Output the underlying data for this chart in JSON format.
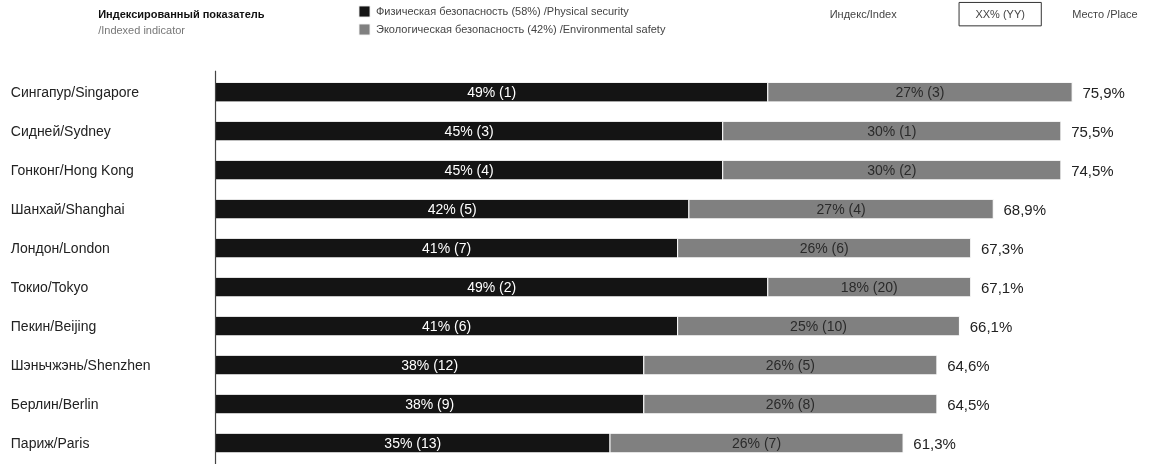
{
  "chart_data": {
    "type": "bar",
    "orientation": "horizontal",
    "stacked": true,
    "legend_title": "Индексированный показатель\n/Indexed indicator",
    "annotations": [
      "Индекс/Index",
      "XX% (YY)",
      "Место /Place",
      {
        "text": "75,9%",
        "x": 76,
        "y": "Сингапур/Singapore"
      },
      {
        "text": "75,5%",
        "x": 75,
        "y": "Сидней/Sydney"
      },
      {
        "text": "74,5%",
        "x": 75,
        "y": "Гонконг/Hong Kong"
      },
      {
        "text": "68,9%",
        "x": 69,
        "y": "Шанхай/Shanghai"
      },
      {
        "text": "67,3%",
        "x": 67,
        "y": "Лондон/London"
      },
      {
        "text": "67,1%",
        "x": 67,
        "y": "Токио/Tokyo"
      },
      {
        "text": "66,1%",
        "x": 66,
        "y": "Пекин/Beijing"
      },
      {
        "text": "64,6%",
        "x": 64,
        "y": "Шэньчжэнь/Shenzhen"
      },
      {
        "text": "64,5%",
        "x": 64,
        "y": "Берлин/Berlin"
      },
      {
        "text": "61,3%",
        "x": 61,
        "y": "Париж/Paris"
      }
    ],
    "categories": [
      "Сингапур/Singapore",
      "Сидней/Sydney",
      "Гонконг/Hong Kong",
      "Шанхай/Shanghai",
      "Лондон/London",
      "Токио/Tokyo",
      "Пекин/Beijing",
      "Шэньчжэнь/Shenzhen",
      "Берлин/Berlin",
      "Париж/Paris"
    ],
    "series": [
      {
        "name": "Физическая безопасность (58%) /Physical security",
        "color": "#141414",
        "values": [
          49,
          45,
          45,
          42,
          41,
          49,
          41,
          38,
          38,
          35
        ],
        "value_labels": [
          "49% (1)",
          "45% (3)",
          "45% (4)",
          "42% (5)",
          "41% (7)",
          "49% (2)",
          "41% (6)",
          "38% (12)",
          "38% (9)",
          "35% (13)"
        ]
      },
      {
        "name": "Экологическая безопасность (42%) /Environmental safety",
        "color": "#808080",
        "values": [
          27,
          30,
          30,
          27,
          26,
          18,
          25,
          26,
          26,
          26
        ],
        "value_labels": [
          "27% (3)",
          "30% (1)",
          "30% (2)",
          "27% (4)",
          "26% (6)",
          "18% (20)",
          "25% (10)",
          "26% (5)",
          "26% (8)",
          "26% (7)"
        ]
      }
    ],
    "legend": "top"
  }
}
